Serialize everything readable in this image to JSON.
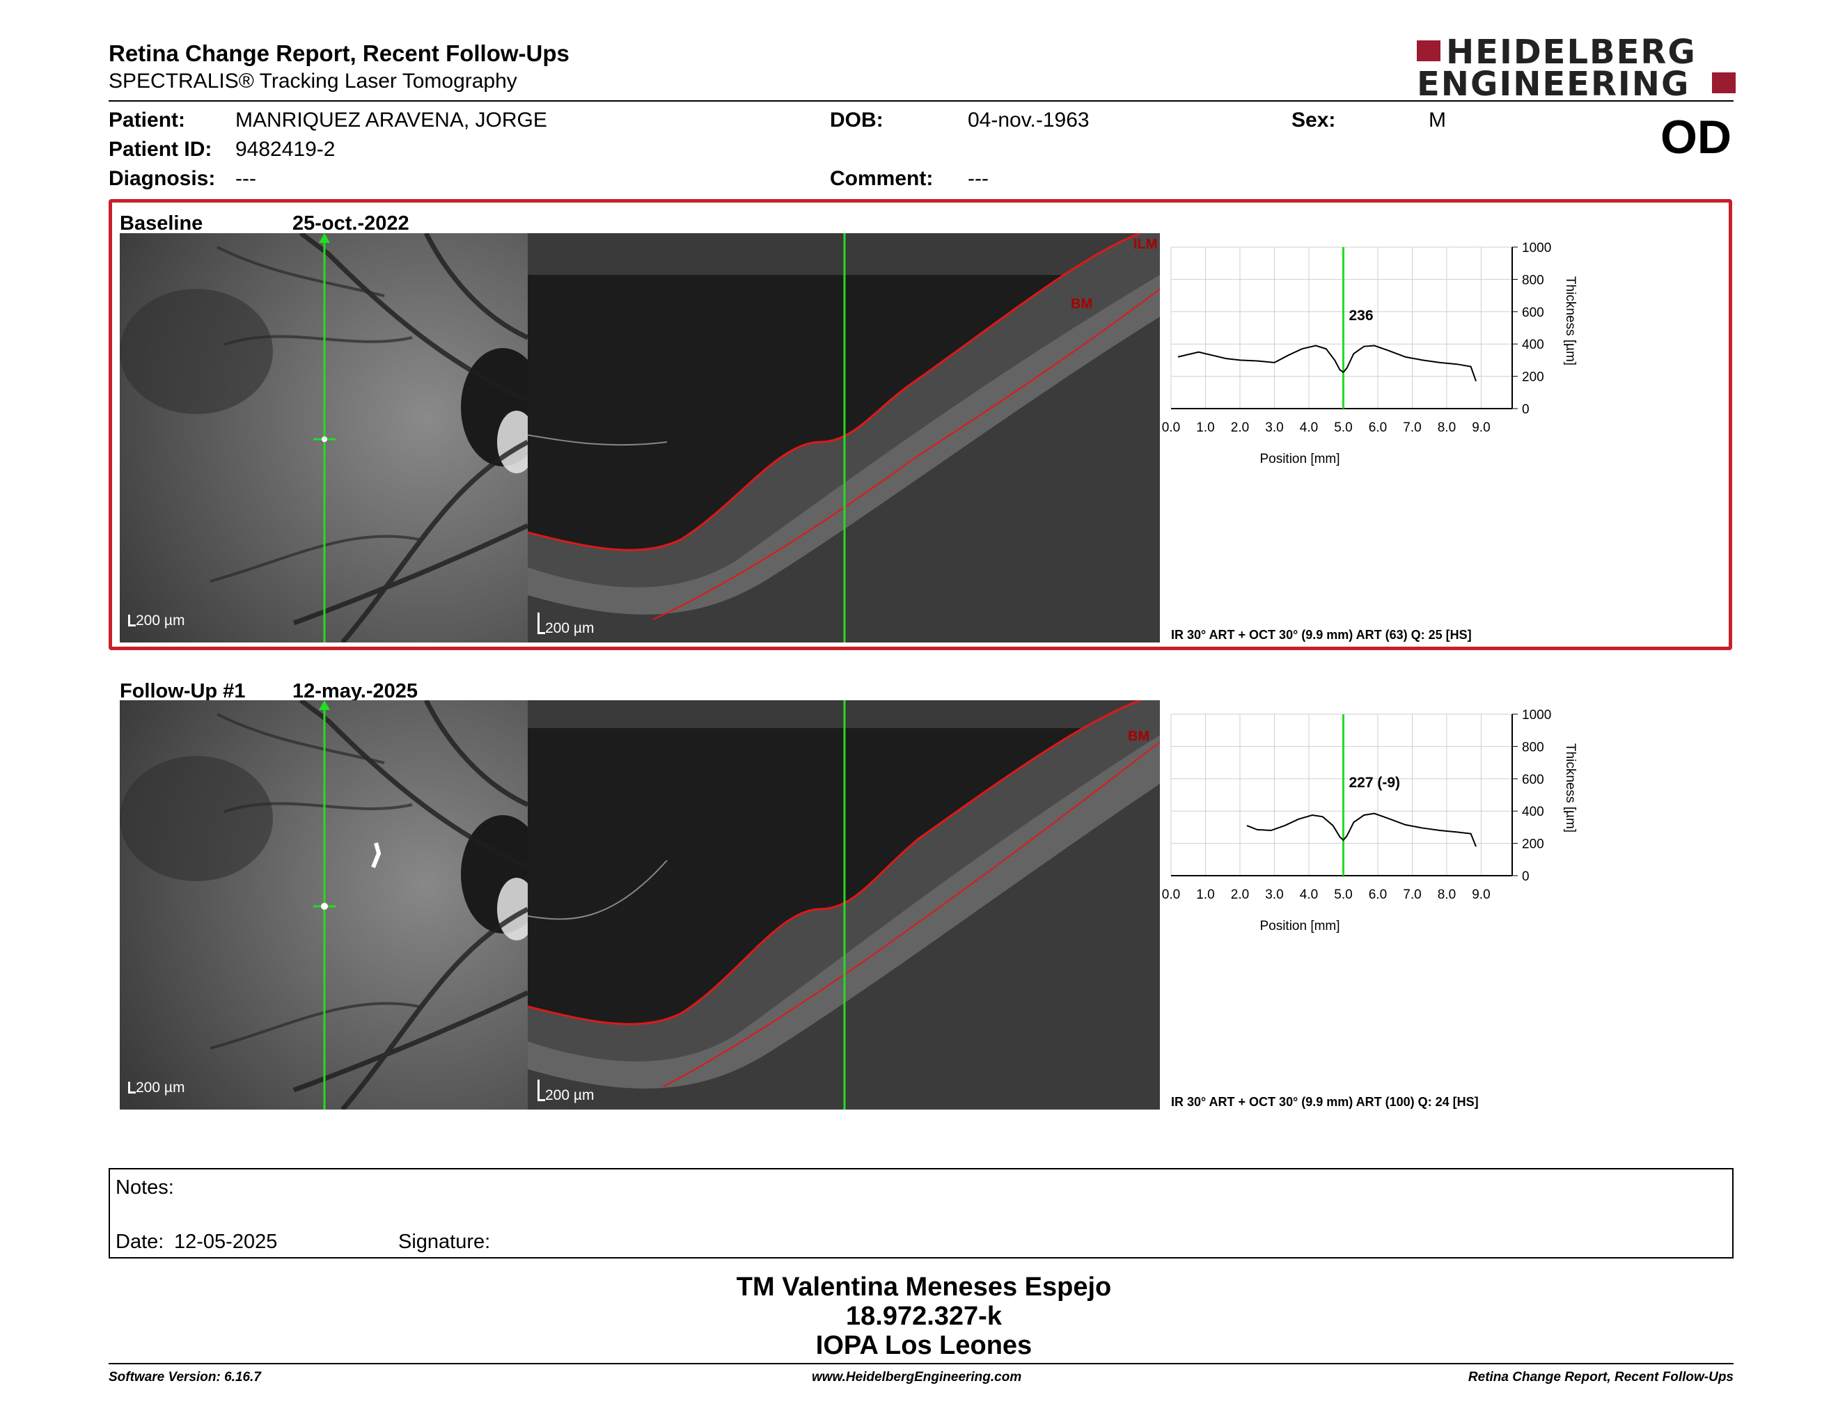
{
  "header": {
    "title": "Retina Change Report, Recent Follow-Ups",
    "subtitle": "SPECTRALIS® Tracking Laser Tomography",
    "logo_line1": "HEIDELBERG",
    "logo_line2": "ENGINEERING",
    "eye": "OD"
  },
  "patient": {
    "name_label": "Patient:",
    "name": "MANRIQUEZ ARAVENA, JORGE",
    "id_label": "Patient ID:",
    "id": "9482419-2",
    "diagnosis_label": "Diagnosis:",
    "diagnosis": "---",
    "dob_label": "DOB:",
    "dob": "04-nov.-1963",
    "comment_label": "Comment:",
    "comment": "---",
    "sex_label": "Sex:",
    "sex": "M"
  },
  "exams": [
    {
      "label": "Baseline",
      "date": "25-oct.-2022",
      "scale_ir": "200 µm",
      "scale_oct": "200 µm",
      "layer_top": "ILM",
      "layer_bottom": "BM",
      "thickness_label": "236",
      "caption": "IR 30° ART + OCT 30° (9.9 mm) ART (63) Q: 25 [HS]"
    },
    {
      "label": "Follow-Up #1",
      "date": "12-may.-2025",
      "scale_ir": "200 µm",
      "scale_oct": "200 µm",
      "layer_top": "",
      "layer_bottom": "BM",
      "thickness_label": "227 (-9)",
      "caption": "IR 30° ART + OCT 30° (9.9 mm) ART (100) Q: 24 [HS]"
    }
  ],
  "chart_data": [
    {
      "type": "line",
      "xlabel": "Position [mm]",
      "ylabel": "Thickness [µm]",
      "xlim": [
        0,
        9.9
      ],
      "ylim": [
        0,
        1000
      ],
      "x_ticks": [
        "0.0",
        "1.0",
        "2.0",
        "3.0",
        "4.0",
        "5.0",
        "6.0",
        "7.0",
        "8.0",
        "9.0"
      ],
      "y_ticks": [
        "0",
        "200",
        "400",
        "600",
        "800",
        "1000"
      ],
      "grid": true,
      "marker_x": 5.0,
      "marker_label": "236",
      "x": [
        0.2,
        0.5,
        0.8,
        1.2,
        1.6,
        2.0,
        2.5,
        3.0,
        3.4,
        3.8,
        4.2,
        4.5,
        4.75,
        4.9,
        5.0,
        5.1,
        5.3,
        5.6,
        5.9,
        6.3,
        6.8,
        7.3,
        7.8,
        8.3,
        8.7,
        8.85
      ],
      "y": [
        320,
        335,
        350,
        330,
        310,
        300,
        295,
        285,
        330,
        370,
        390,
        370,
        300,
        240,
        225,
        250,
        340,
        385,
        390,
        360,
        320,
        300,
        285,
        275,
        260,
        170
      ]
    },
    {
      "type": "line",
      "xlabel": "Position [mm]",
      "ylabel": "Thickness [µm]",
      "xlim": [
        0,
        9.9
      ],
      "ylim": [
        0,
        1000
      ],
      "x_ticks": [
        "0.0",
        "1.0",
        "2.0",
        "3.0",
        "4.0",
        "5.0",
        "6.0",
        "7.0",
        "8.0",
        "9.0"
      ],
      "y_ticks": [
        "0",
        "200",
        "400",
        "600",
        "800",
        "1000"
      ],
      "grid": true,
      "marker_x": 5.0,
      "marker_label": "227 (-9)",
      "x": [
        2.2,
        2.5,
        2.9,
        3.3,
        3.7,
        4.1,
        4.4,
        4.7,
        4.9,
        5.0,
        5.1,
        5.3,
        5.6,
        5.9,
        6.3,
        6.8,
        7.3,
        7.8,
        8.3,
        8.7,
        8.85
      ],
      "y": [
        310,
        285,
        280,
        310,
        350,
        375,
        365,
        310,
        240,
        220,
        245,
        330,
        375,
        385,
        355,
        315,
        295,
        280,
        270,
        260,
        180
      ]
    }
  ],
  "notes": {
    "label": "Notes:",
    "date_label": "Date:",
    "date": "12-05-2025",
    "signature_label": "Signature:"
  },
  "signature_block": {
    "name": "TM Valentina Meneses Espejo",
    "rut": "18.972.327-k",
    "institution": "IOPA Los Leones"
  },
  "footer": {
    "left": "Software Version: 6.16.7",
    "center": "www.HeidelbergEngineering.com",
    "right": "Retina Change Report, Recent Follow-Ups"
  }
}
